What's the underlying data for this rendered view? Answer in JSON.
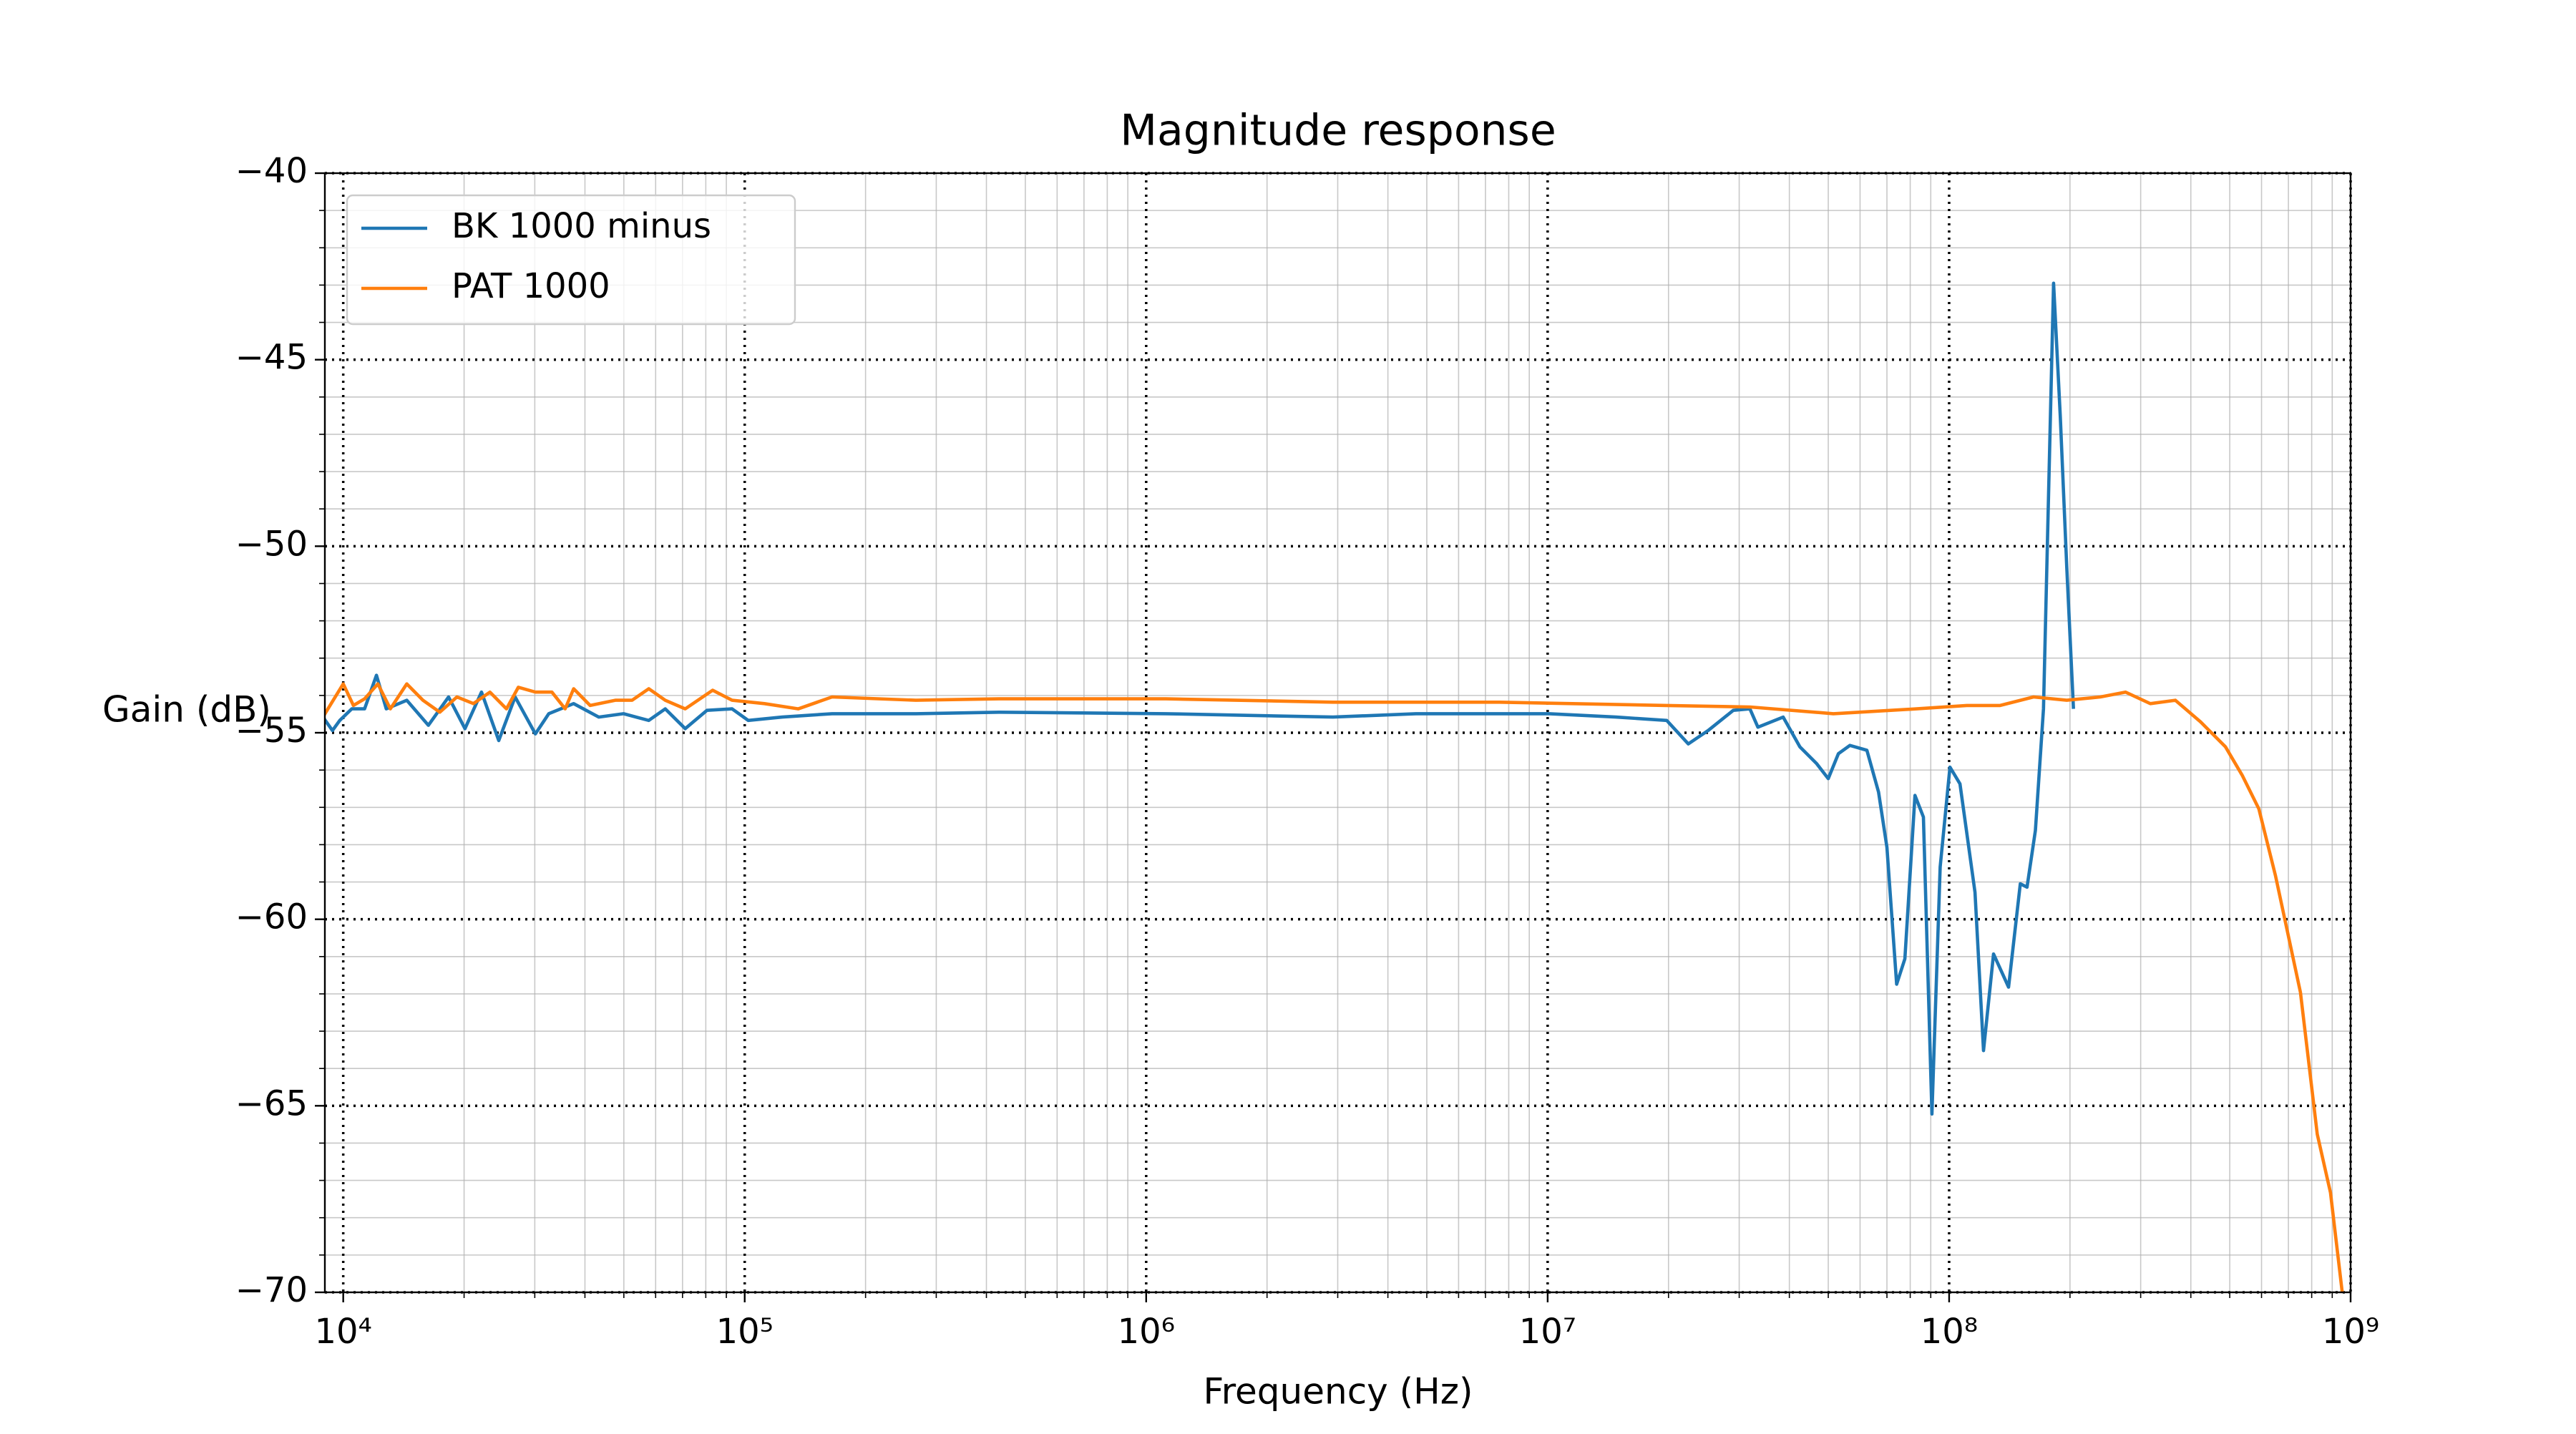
{
  "chart_data": {
    "type": "line",
    "title": "Magnitude response",
    "x_label": "Frequency (Hz)",
    "y_label": "Gain (dB)",
    "xscale": "log",
    "xlim": [
      9000,
      1000000000
    ],
    "ylim": [
      -70,
      -40
    ],
    "xticks": [
      {
        "value": 10000,
        "label": "10⁴"
      },
      {
        "value": 100000,
        "label": "10⁵"
      },
      {
        "value": 1000000,
        "label": "10⁶"
      },
      {
        "value": 10000000,
        "label": "10⁷"
      },
      {
        "value": 100000000,
        "label": "10⁸"
      },
      {
        "value": 1000000000,
        "label": "10⁹"
      }
    ],
    "yticks": [
      {
        "value": -70,
        "label": "−70"
      },
      {
        "value": -65,
        "label": "−65"
      },
      {
        "value": -60,
        "label": "−60"
      },
      {
        "value": -55,
        "label": "−55"
      },
      {
        "value": -50,
        "label": "−50"
      },
      {
        "value": -45,
        "label": "−45"
      },
      {
        "value": -40,
        "label": "−40"
      }
    ],
    "xminorticks": [
      20000,
      30000,
      40000,
      50000,
      60000,
      70000,
      80000,
      90000,
      200000,
      300000,
      400000,
      500000,
      600000,
      700000,
      800000,
      900000,
      2000000,
      3000000,
      4000000,
      5000000,
      6000000,
      7000000,
      8000000,
      9000000,
      20000000,
      30000000,
      40000000,
      50000000,
      60000000,
      70000000,
      80000000,
      90000000,
      200000000,
      300000000,
      400000000,
      500000000,
      600000000,
      700000000,
      800000000,
      900000000
    ],
    "yminorticks": [
      -69,
      -68,
      -67,
      -66,
      -64,
      -63,
      -62,
      -61,
      -59,
      -58,
      -57,
      -56,
      -54,
      -53,
      -52,
      -51,
      -49,
      -48,
      -47,
      -46,
      -44,
      -43,
      -42,
      -41
    ],
    "grid": true,
    "minor_grid": true,
    "legend": "upper left",
    "series": [
      {
        "name": "BK 1000 minus",
        "color": "#1f77b4",
        "x": [
          8900,
          9400,
          9800,
          10500,
          11300,
          12100,
          12800,
          14400,
          16300,
          18300,
          20100,
          22100,
          24400,
          26800,
          30100,
          32500,
          37500,
          43300,
          49900,
          57700,
          63400,
          71100,
          80500,
          93000,
          102000,
          124000,
          165000,
          267000,
          430000,
          1120000,
          2920000,
          4700000,
          10100000,
          14800000,
          19800000,
          22400000,
          25100000,
          29000000,
          31900000,
          33400000,
          38600000,
          42500000,
          46800000,
          50000000,
          53000000,
          56600000,
          62400000,
          66700000,
          70000000,
          74000000,
          77600000,
          82200000,
          86300000,
          90600000,
          95000000,
          100500000,
          106400000,
          116000000,
          121800000,
          129000000,
          140600000,
          150400000,
          156300000,
          164000000,
          171800000,
          182000000,
          189200000,
          196300000,
          204000000
        ],
        "values": [
          -54.58,
          -54.94,
          -54.67,
          -54.36,
          -54.36,
          -53.46,
          -54.36,
          -54.13,
          -54.8,
          -54.04,
          -54.89,
          -53.91,
          -55.21,
          -54.04,
          -55.03,
          -54.49,
          -54.22,
          -54.58,
          -54.49,
          -54.67,
          -54.36,
          -54.89,
          -54.4,
          -54.36,
          -54.67,
          -54.58,
          -54.49,
          -54.49,
          -54.45,
          -54.49,
          -54.58,
          -54.49,
          -54.49,
          -54.58,
          -54.67,
          -55.3,
          -54.94,
          -54.4,
          -54.36,
          -54.85,
          -54.58,
          -55.38,
          -55.83,
          -56.23,
          -55.56,
          -55.34,
          -55.47,
          -56.59,
          -58.07,
          -61.74,
          -61.06,
          -56.68,
          -57.26,
          -65.22,
          -58.6,
          -55.92,
          -56.37,
          -59.28,
          -63.52,
          -60.93,
          -61.82,
          -59.05,
          -59.14,
          -57.62,
          -54.36,
          -42.95,
          -46.53,
          -50.55,
          -54.36
        ]
      },
      {
        "name": "PAT 1000",
        "color": "#ff7f0e",
        "x": [
          8900,
          10000,
          10600,
          11300,
          12200,
          13100,
          14400,
          15800,
          17400,
          19200,
          21100,
          23200,
          25500,
          27300,
          30100,
          33100,
          35700,
          37500,
          41200,
          47600,
          52400,
          57700,
          63400,
          71100,
          83200,
          93000,
          112000,
          136000,
          165000,
          267000,
          430000,
          1120000,
          2920000,
          7590000,
          19800000,
          31900000,
          51500000,
          83000000,
          110700000,
          134000000,
          162300000,
          196300000,
          238000000,
          275000000,
          317000000,
          366000000,
          423000000,
          488000000,
          537000000,
          591000000,
          650000000,
          750000000,
          826000000,
          891000000,
          953000000
        ],
        "values": [
          -54.58,
          -53.69,
          -54.27,
          -54.09,
          -53.69,
          -54.36,
          -53.69,
          -54.13,
          -54.45,
          -54.04,
          -54.22,
          -53.91,
          -54.36,
          -53.78,
          -53.91,
          -53.91,
          -54.36,
          -53.82,
          -54.27,
          -54.13,
          -54.13,
          -53.82,
          -54.13,
          -54.36,
          -53.86,
          -54.13,
          -54.22,
          -54.36,
          -54.04,
          -54.13,
          -54.09,
          -54.09,
          -54.18,
          -54.18,
          -54.27,
          -54.31,
          -54.49,
          -54.36,
          -54.27,
          -54.27,
          -54.04,
          -54.13,
          -54.04,
          -53.91,
          -54.22,
          -54.13,
          -54.71,
          -55.38,
          -56.14,
          -57.04,
          -58.83,
          -61.96,
          -65.76,
          -67.33,
          -70
        ]
      }
    ]
  }
}
